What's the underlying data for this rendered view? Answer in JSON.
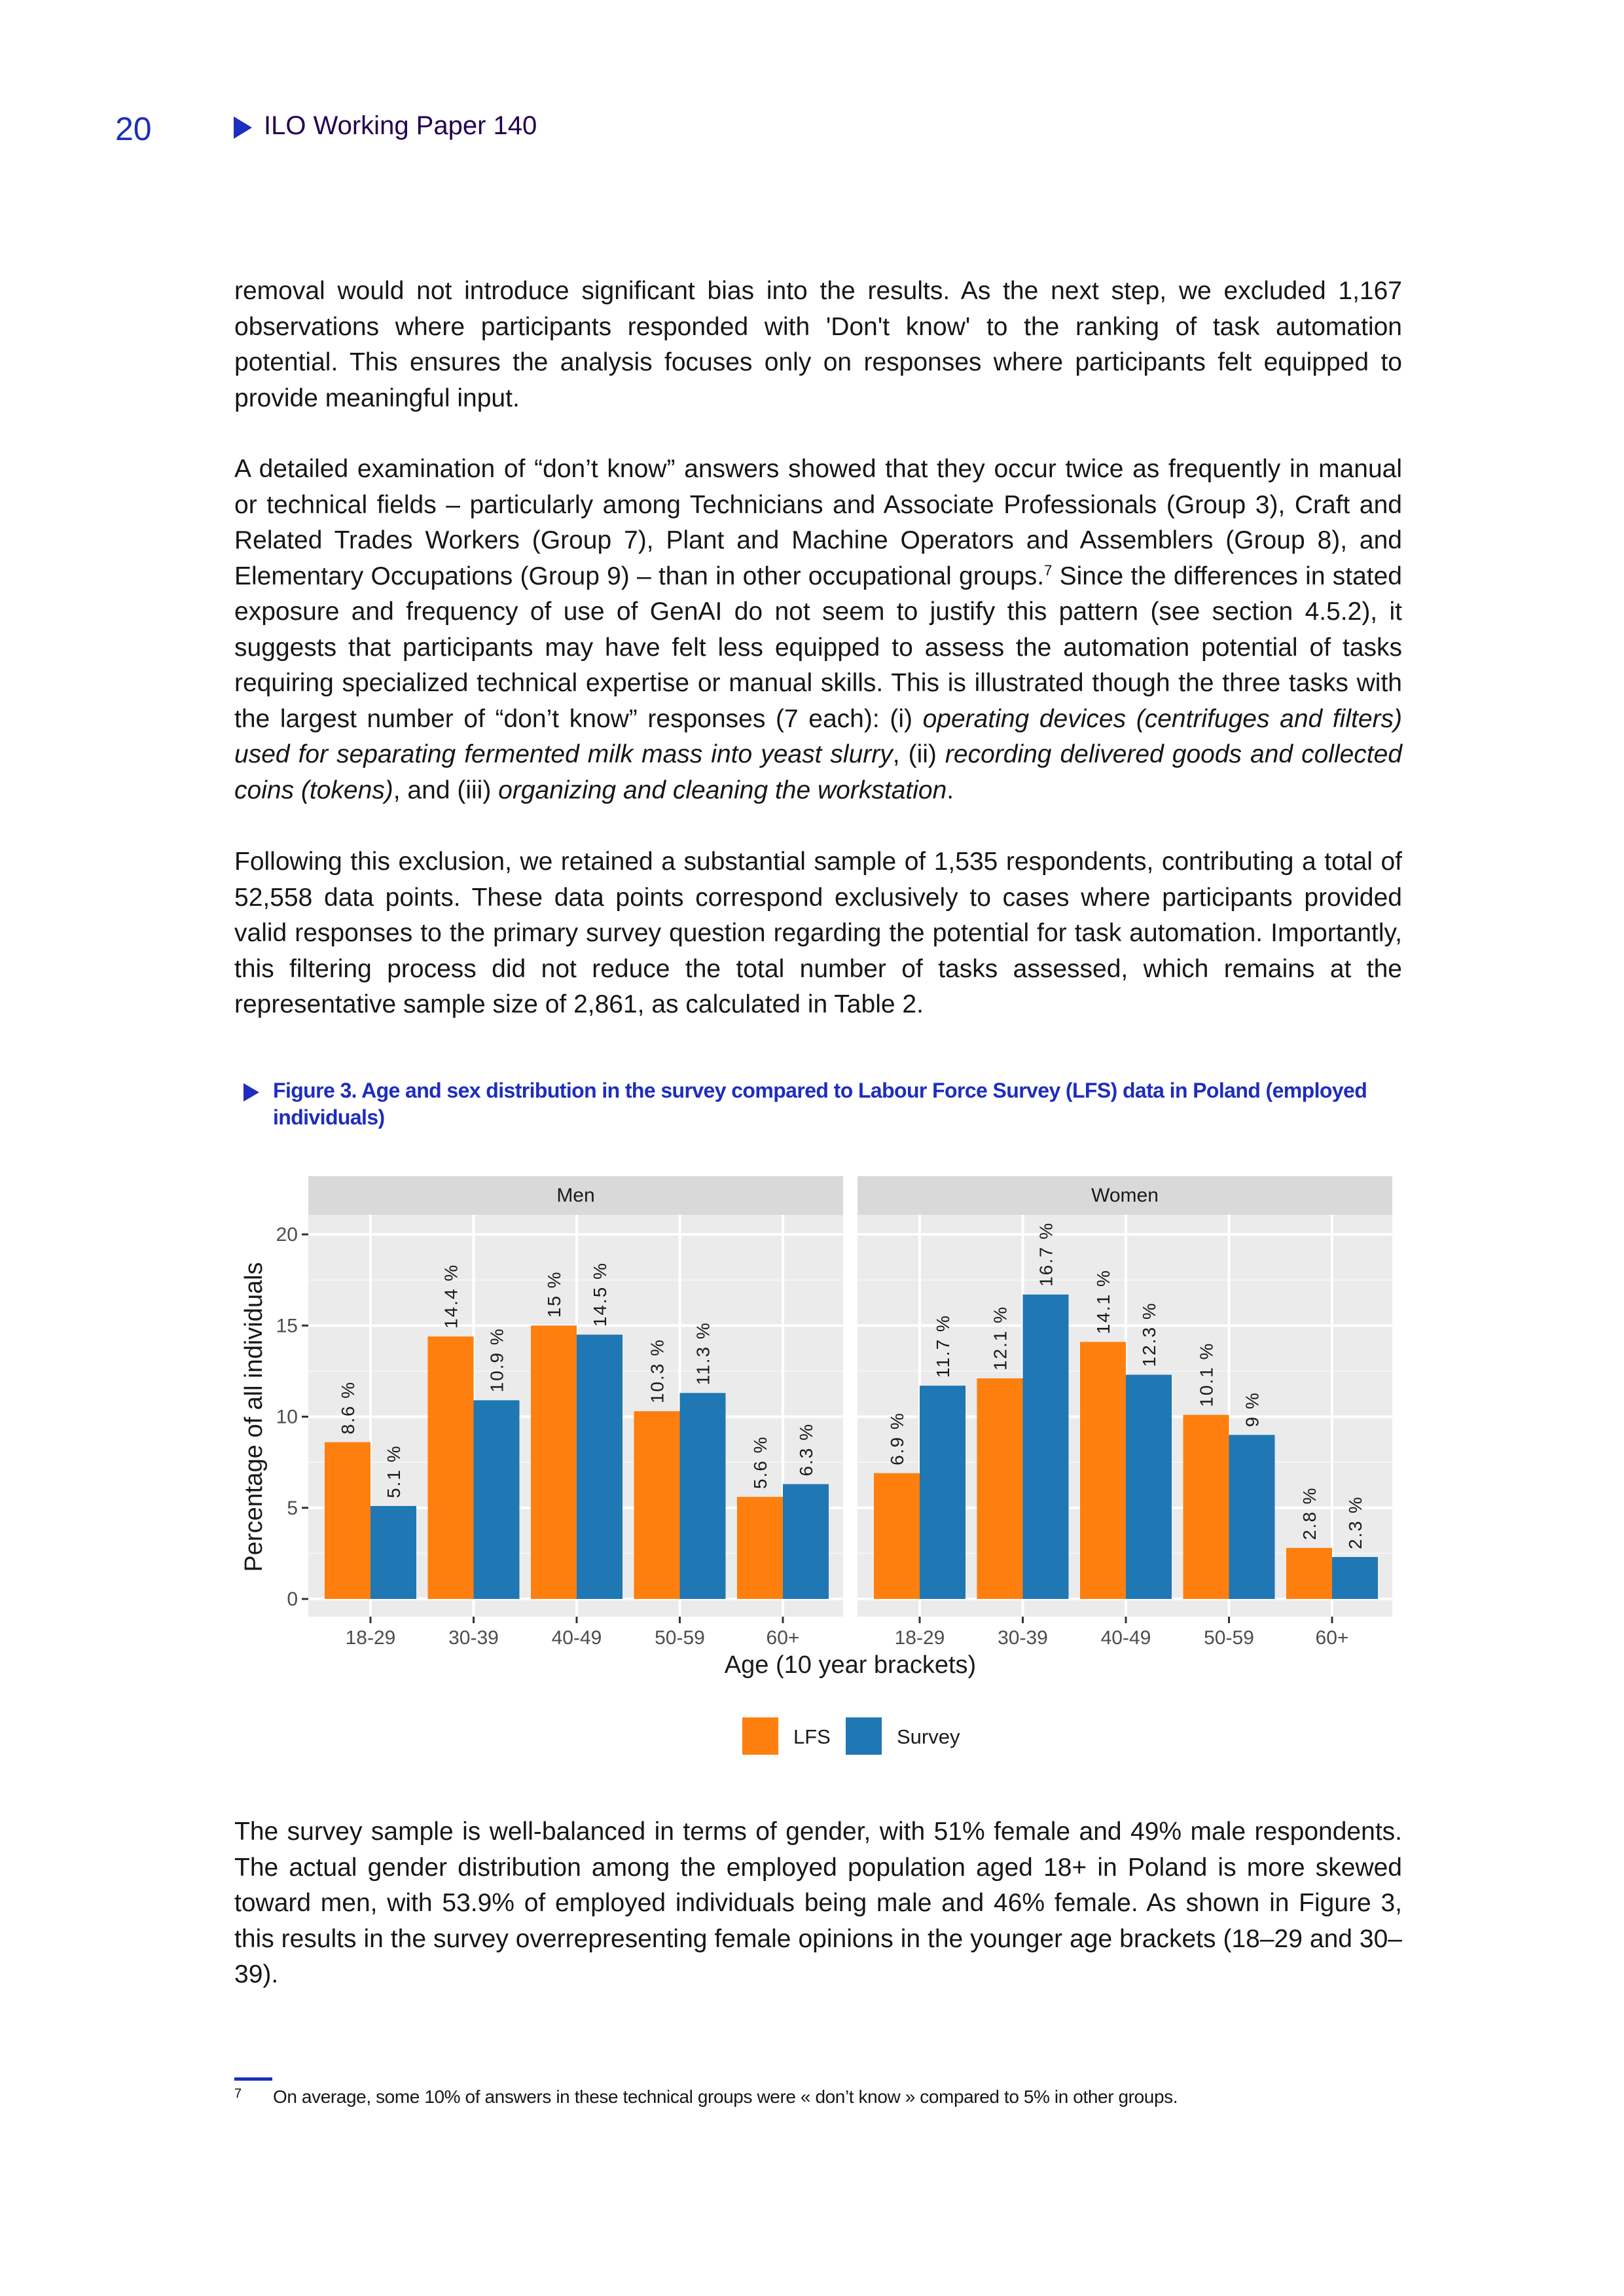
{
  "header": {
    "page_number": "20",
    "running_title": "ILO Working Paper 140"
  },
  "paragraphs": {
    "p1": "removal would not introduce significant bias into the results. As the next step, we excluded 1,167 observations where participants responded with 'Don't know' to the ranking of task automation potential. This ensures the analysis focuses only on responses where participants felt equipped to provide meaningful input.",
    "p2": {
      "s0": "A detailed examination of “don’t know” answers showed that they occur twice as frequently in manual or technical fields – particularly among Technicians and Associate Professionals (Group 3), Craft and Related Trades Workers (Group 7), Plant and Machine Operators and Assemblers (Group 8), and Elementary Occupations (Group 9) – than in other occupational groups.",
      "footnote_ref": "7",
      "s1": " Since the differences in stated exposure and frequency of use of GenAI do not seem to justify this pattern (see section 4.5.2), it suggests that participants may have felt less equipped to assess the automation potential of tasks requiring specialized technical expertise or manual skills. This is illustrated though the three tasks with the largest number of “don’t know” responses (7 each): (i) ",
      "i1": "operating devices (centrifuges and filters) used for separating fermented milk mass into yeast slurry",
      "s2": ", (ii) ",
      "i2": "recording delivered goods and collected coins (tokens)",
      "s3": ", and (iii) ",
      "i3": "organizing and cleaning the workstation",
      "s4": "."
    },
    "p3": "Following this exclusion, we retained a substantial sample of 1,535 respondents, contributing a total of 52,558 data points. These data points correspond exclusively to cases where participants provided valid responses to the primary survey question regarding the potential for task automation. Importantly, this filtering process did not reduce the total number of tasks assessed, which remains at the representative sample size of 2,861, as calculated in Table 2.",
    "p4": "The survey sample is well-balanced in terms of gender, with 51% female and 49% male respondents. The actual gender distribution among the employed population aged 18+ in Poland is more skewed toward men, with 53.9% of employed individuals being male and 46% female. As shown in Figure 3, this results in the survey overrepresenting female opinions in the younger age brackets (18–29 and 30–39)."
  },
  "figure": {
    "caption": "Figure 3. Age and sex distribution in the survey compared to Labour Force Survey (LFS) data in Poland (employed individuals)"
  },
  "chart_data": {
    "type": "bar",
    "facets": [
      "Men",
      "Women"
    ],
    "categories": [
      "18-29",
      "30-39",
      "40-49",
      "50-59",
      "60+"
    ],
    "series": [
      {
        "name": "LFS",
        "color": "#ff7f0e",
        "values": {
          "Men": [
            8.6,
            14.4,
            15,
            10.3,
            5.6
          ],
          "Women": [
            6.9,
            12.1,
            14.1,
            10.1,
            2.8
          ]
        }
      },
      {
        "name": "Survey",
        "color": "#1f77b4",
        "values": {
          "Men": [
            5.1,
            10.9,
            14.5,
            11.3,
            6.3
          ],
          "Women": [
            11.7,
            16.7,
            12.3,
            9,
            2.3
          ]
        }
      }
    ],
    "value_labels": {
      "LFS": {
        "Men": [
          "8.6 %",
          "14.4 %",
          "15 %",
          "10.3 %",
          "5.6 %"
        ],
        "Women": [
          "6.9 %",
          "12.1 %",
          "14.1 %",
          "10.1 %",
          "2.8 %"
        ]
      },
      "Survey": {
        "Men": [
          "5.1 %",
          "10.9 %",
          "14.5 %",
          "11.3 %",
          "6.3 %"
        ],
        "Women": [
          "11.7 %",
          "16.7 %",
          "12.3 %",
          "9 %",
          "2.3 %"
        ]
      }
    },
    "xlabel": "Age (10 year brackets)",
    "ylabel": "Percentage of all individuals",
    "yticks": [
      "0",
      "5",
      "10",
      "15",
      "20"
    ],
    "ylim": [
      0,
      21
    ],
    "grid": true,
    "legend_position": "bottom"
  },
  "footnote": {
    "mark": "7",
    "text": "On average, some 10% of answers in these technical groups were « don’t know » compared to 5% in other groups."
  }
}
